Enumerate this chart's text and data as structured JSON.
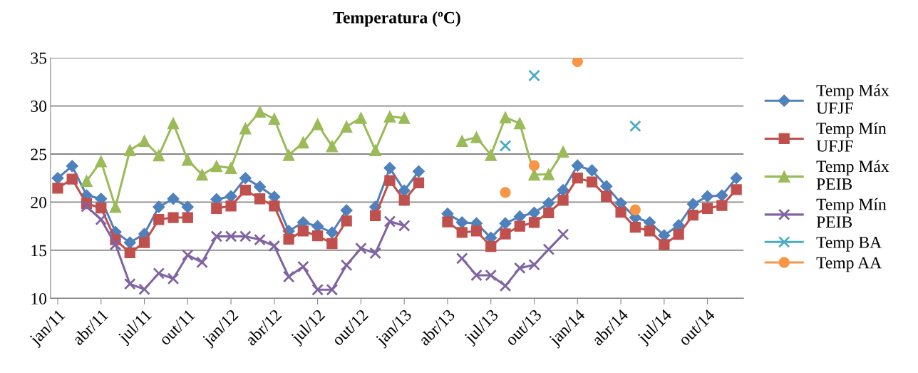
{
  "chart_data": {
    "type": "line",
    "title": "Temperatura (ºC)",
    "categories": [
      "jan/11",
      null,
      null,
      "abr/11",
      null,
      null,
      "jul/11",
      null,
      null,
      "out/11",
      null,
      null,
      "jan/12",
      null,
      null,
      "abr/12",
      null,
      null,
      "jul/12",
      null,
      null,
      "out/12",
      null,
      null,
      "jan/13",
      null,
      null,
      "abr/13",
      null,
      null,
      "jul/13",
      null,
      null,
      "out/13",
      null,
      null,
      "jan/14",
      null,
      null,
      "abr/14",
      null,
      null,
      "jul/14",
      null,
      null,
      "out/14",
      null,
      null
    ],
    "ylim": [
      10,
      35
    ],
    "yticks": [
      10,
      15,
      20,
      25,
      30,
      35
    ],
    "grid": "y",
    "legend": "right",
    "line_style": "solid",
    "series": [
      {
        "name": "Temp Máx UFJF",
        "color": "#4f81bd",
        "marker": "diamond",
        "values": [
          22.5,
          23.75,
          20.7,
          20.35,
          16.9,
          15.8,
          16.7,
          19.5,
          20.35,
          19.5,
          null,
          20.3,
          20.6,
          22.5,
          21.6,
          20.55,
          17.0,
          17.9,
          17.5,
          16.85,
          19.15,
          null,
          19.5,
          23.55,
          21.2,
          23.2,
          null,
          18.8,
          17.9,
          17.8,
          16.3,
          17.8,
          18.5,
          18.9,
          19.9,
          21.25,
          23.8,
          23.3,
          21.65,
          19.9,
          18.4,
          17.9,
          16.55,
          17.6,
          19.8,
          20.6,
          20.7,
          22.5
        ]
      },
      {
        "name": "Temp Mín UFJF",
        "color": "#c0504d",
        "marker": "square",
        "values": [
          21.45,
          22.4,
          19.85,
          19.4,
          16.1,
          14.75,
          15.8,
          18.2,
          18.4,
          18.4,
          null,
          19.35,
          19.6,
          21.25,
          20.35,
          19.6,
          16.15,
          17.0,
          16.5,
          15.7,
          18.05,
          null,
          18.6,
          22.25,
          20.2,
          22.0,
          null,
          17.95,
          16.85,
          17.0,
          15.4,
          16.7,
          17.5,
          17.9,
          18.9,
          20.2,
          22.5,
          22.1,
          20.6,
          18.95,
          17.4,
          17.0,
          15.6,
          16.65,
          18.65,
          19.35,
          19.65,
          21.3
        ]
      },
      {
        "name": "Temp Máx PEIB",
        "color": "#9bbb59",
        "marker": "triangle",
        "values": [
          null,
          null,
          22.2,
          24.25,
          19.5,
          25.4,
          26.35,
          24.85,
          28.2,
          24.4,
          22.85,
          23.75,
          23.55,
          27.65,
          29.4,
          28.65,
          24.9,
          26.2,
          28.1,
          25.8,
          27.85,
          28.75,
          25.4,
          28.9,
          28.75,
          null,
          null,
          null,
          26.35,
          26.75,
          24.9,
          28.8,
          28.2,
          22.85,
          22.9,
          25.25,
          null,
          null,
          null,
          null,
          null,
          null,
          null,
          null,
          null,
          null,
          null,
          null
        ]
      },
      {
        "name": "Temp Mín PEIB",
        "color": "#8064a2",
        "marker": "cross",
        "values": [
          null,
          null,
          19.55,
          18.2,
          15.6,
          11.5,
          10.95,
          12.6,
          12.05,
          14.5,
          13.75,
          16.45,
          16.45,
          16.45,
          16.1,
          15.45,
          12.25,
          13.3,
          10.9,
          10.9,
          13.45,
          15.2,
          14.7,
          18.0,
          17.55,
          null,
          null,
          null,
          14.15,
          12.4,
          12.4,
          11.3,
          13.15,
          13.5,
          15.1,
          16.65,
          null,
          null,
          null,
          null,
          null,
          null,
          null,
          null,
          null,
          null,
          null,
          null
        ]
      },
      {
        "name": "Temp BA",
        "color": "#4bacc6",
        "marker": "cross",
        "type": "scatter",
        "values": [
          null,
          null,
          null,
          null,
          null,
          null,
          null,
          null,
          null,
          null,
          null,
          null,
          null,
          null,
          null,
          null,
          null,
          null,
          null,
          null,
          null,
          null,
          null,
          null,
          null,
          null,
          null,
          null,
          null,
          null,
          null,
          25.85,
          null,
          33.15,
          null,
          null,
          null,
          null,
          null,
          null,
          27.9,
          null,
          null,
          null,
          null,
          null,
          null,
          null
        ]
      },
      {
        "name": "Temp AA",
        "color": "#f79646",
        "marker": "circle",
        "type": "scatter",
        "values": [
          null,
          null,
          null,
          null,
          null,
          null,
          null,
          null,
          null,
          null,
          null,
          null,
          null,
          null,
          null,
          null,
          null,
          null,
          null,
          null,
          null,
          null,
          null,
          null,
          null,
          null,
          null,
          null,
          null,
          null,
          null,
          21.0,
          null,
          23.8,
          null,
          null,
          34.6,
          null,
          null,
          null,
          19.2,
          null,
          null,
          null,
          null,
          null,
          null,
          null
        ]
      }
    ]
  }
}
